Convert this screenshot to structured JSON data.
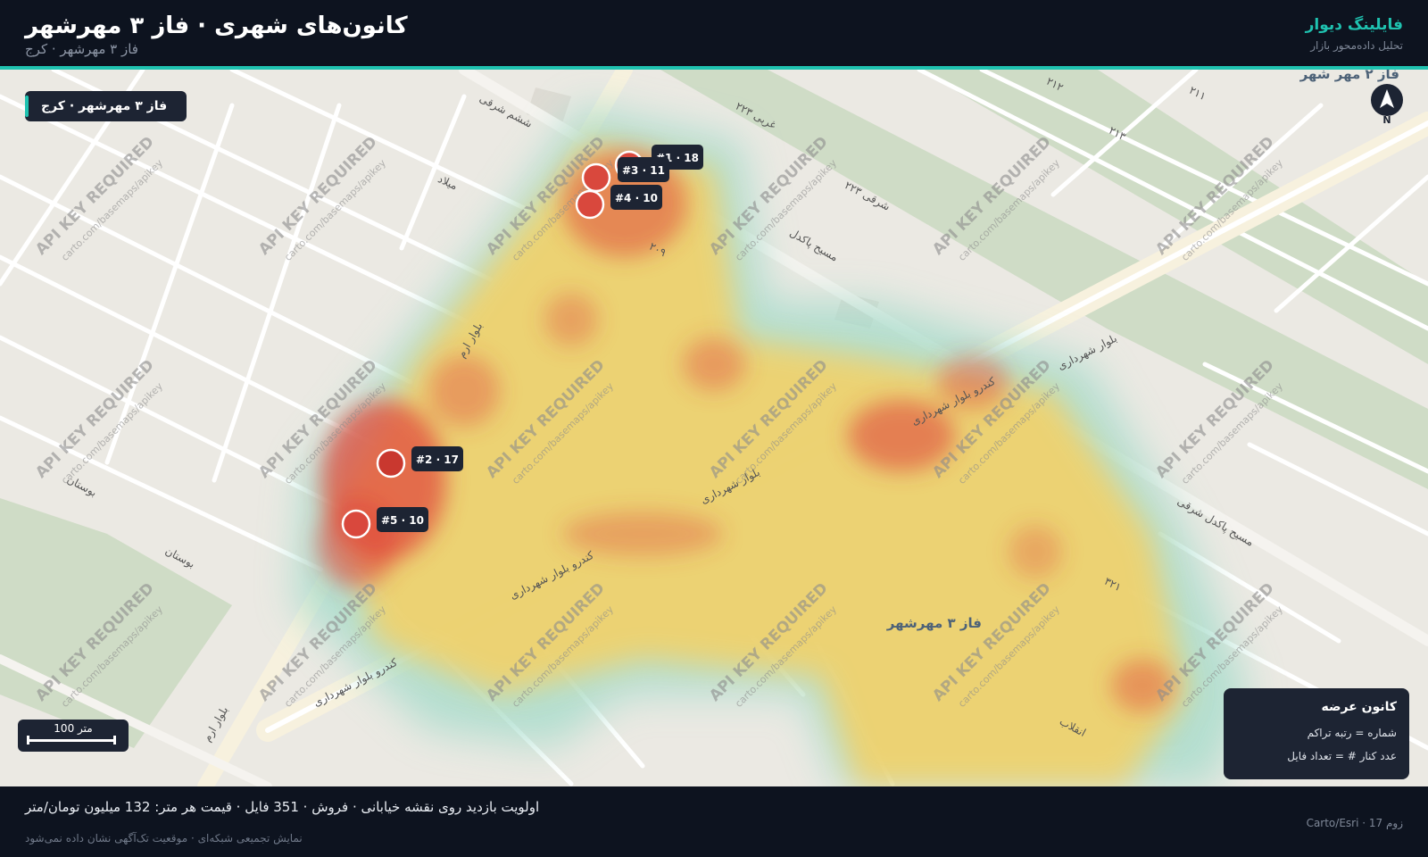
{
  "header": {
    "title": "کانون‌های شهری · فاز ۳ مهرشهر",
    "subtitle": "فاز ۳ مهرشهر · کرج",
    "brand": "فایلینگ دیوار",
    "brand_sub": "تحلیل داده‌محور بازار"
  },
  "map": {
    "area_chip": "فاز ۳ مهرشهر · کرج",
    "compass_label": "N",
    "scale_label": "100 متر",
    "place_labels": {
      "phase2": "فاز ۲ مهر شهر",
      "phase3": "فاز ۳ مهرشهر"
    },
    "road_labels": [
      "بلوار شهرداری",
      "کندرو بلوار شهرداری",
      "بلوار ارم",
      "مسیح پاکدل",
      "مسیح پاکدل شرقی",
      "میلاد",
      "بوستان",
      "انقلاب",
      "ششم شرقی",
      "۲۱۲",
      "۲۱۳",
      "۲۱۱",
      "۲۰۹",
      "۳۲۱",
      "۲۲۳ غربی",
      "۲۲۳ شرقی"
    ],
    "tile_watermark": "API KEY REQUIRED",
    "tile_watermark_sub": "carto.com/basemaps/apikey"
  },
  "clusters": [
    {
      "rank": "#1",
      "count": "18",
      "label": "#1 · 18"
    },
    {
      "rank": "#2",
      "count": "17",
      "label": "#2 · 17"
    },
    {
      "rank": "#3",
      "count": "11",
      "label": "#3 · 11"
    },
    {
      "rank": "#4",
      "count": "10",
      "label": "#4 · 10"
    },
    {
      "rank": "#5",
      "count": "10",
      "label": "#5 · 10"
    }
  ],
  "legend": {
    "title": "کانون عرضه",
    "line1": "شماره = رتبه تراکم",
    "line2": "عدد کنار # = تعداد فایل"
  },
  "footer": {
    "summary": "اولویت بازدید روی نقشه خیابانی · فروش · 351 فایل · قیمت هر متر: 132 میلیون تومان/متر",
    "note": "نمایش تجمیعی شبکه‌ای · موقعیت تک‌آگهی نشان داده نمی‌شود",
    "attribution": "Carto/Esri · زوم 17"
  },
  "colors": {
    "accent": "#1fc2b0",
    "panel": "#1d2433",
    "background": "#0d131f",
    "heat_low": "#a6dccb",
    "heat_mid": "#f6d064",
    "heat_high": "#e04a3c"
  }
}
